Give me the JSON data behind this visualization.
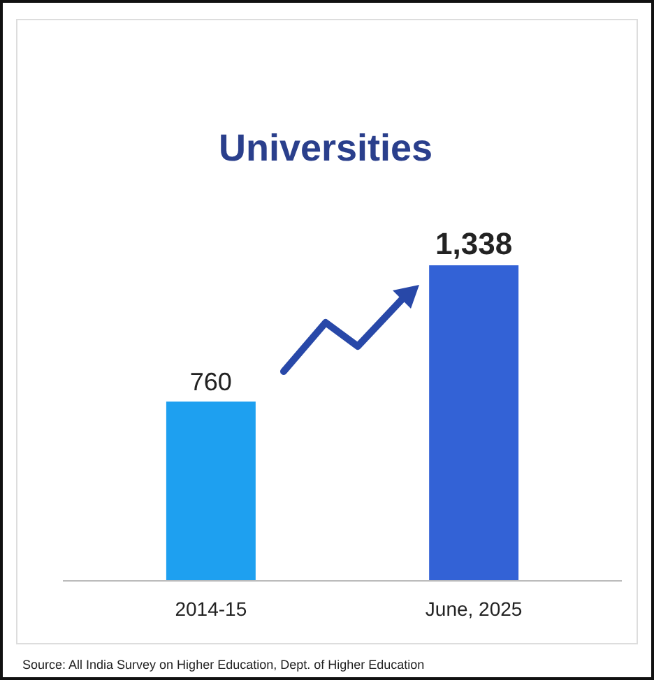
{
  "chart_data": {
    "type": "bar",
    "title": "Universities",
    "categories": [
      "2014-15",
      "June, 2025"
    ],
    "values": [
      760,
      1338
    ],
    "colors": [
      "#1ea0f0",
      "#3362d6"
    ],
    "value_labels": [
      "760",
      "1,338"
    ],
    "annotations": [
      "Source: All India Survey on Higher Education, Dept. of Higher Education"
    ]
  }
}
